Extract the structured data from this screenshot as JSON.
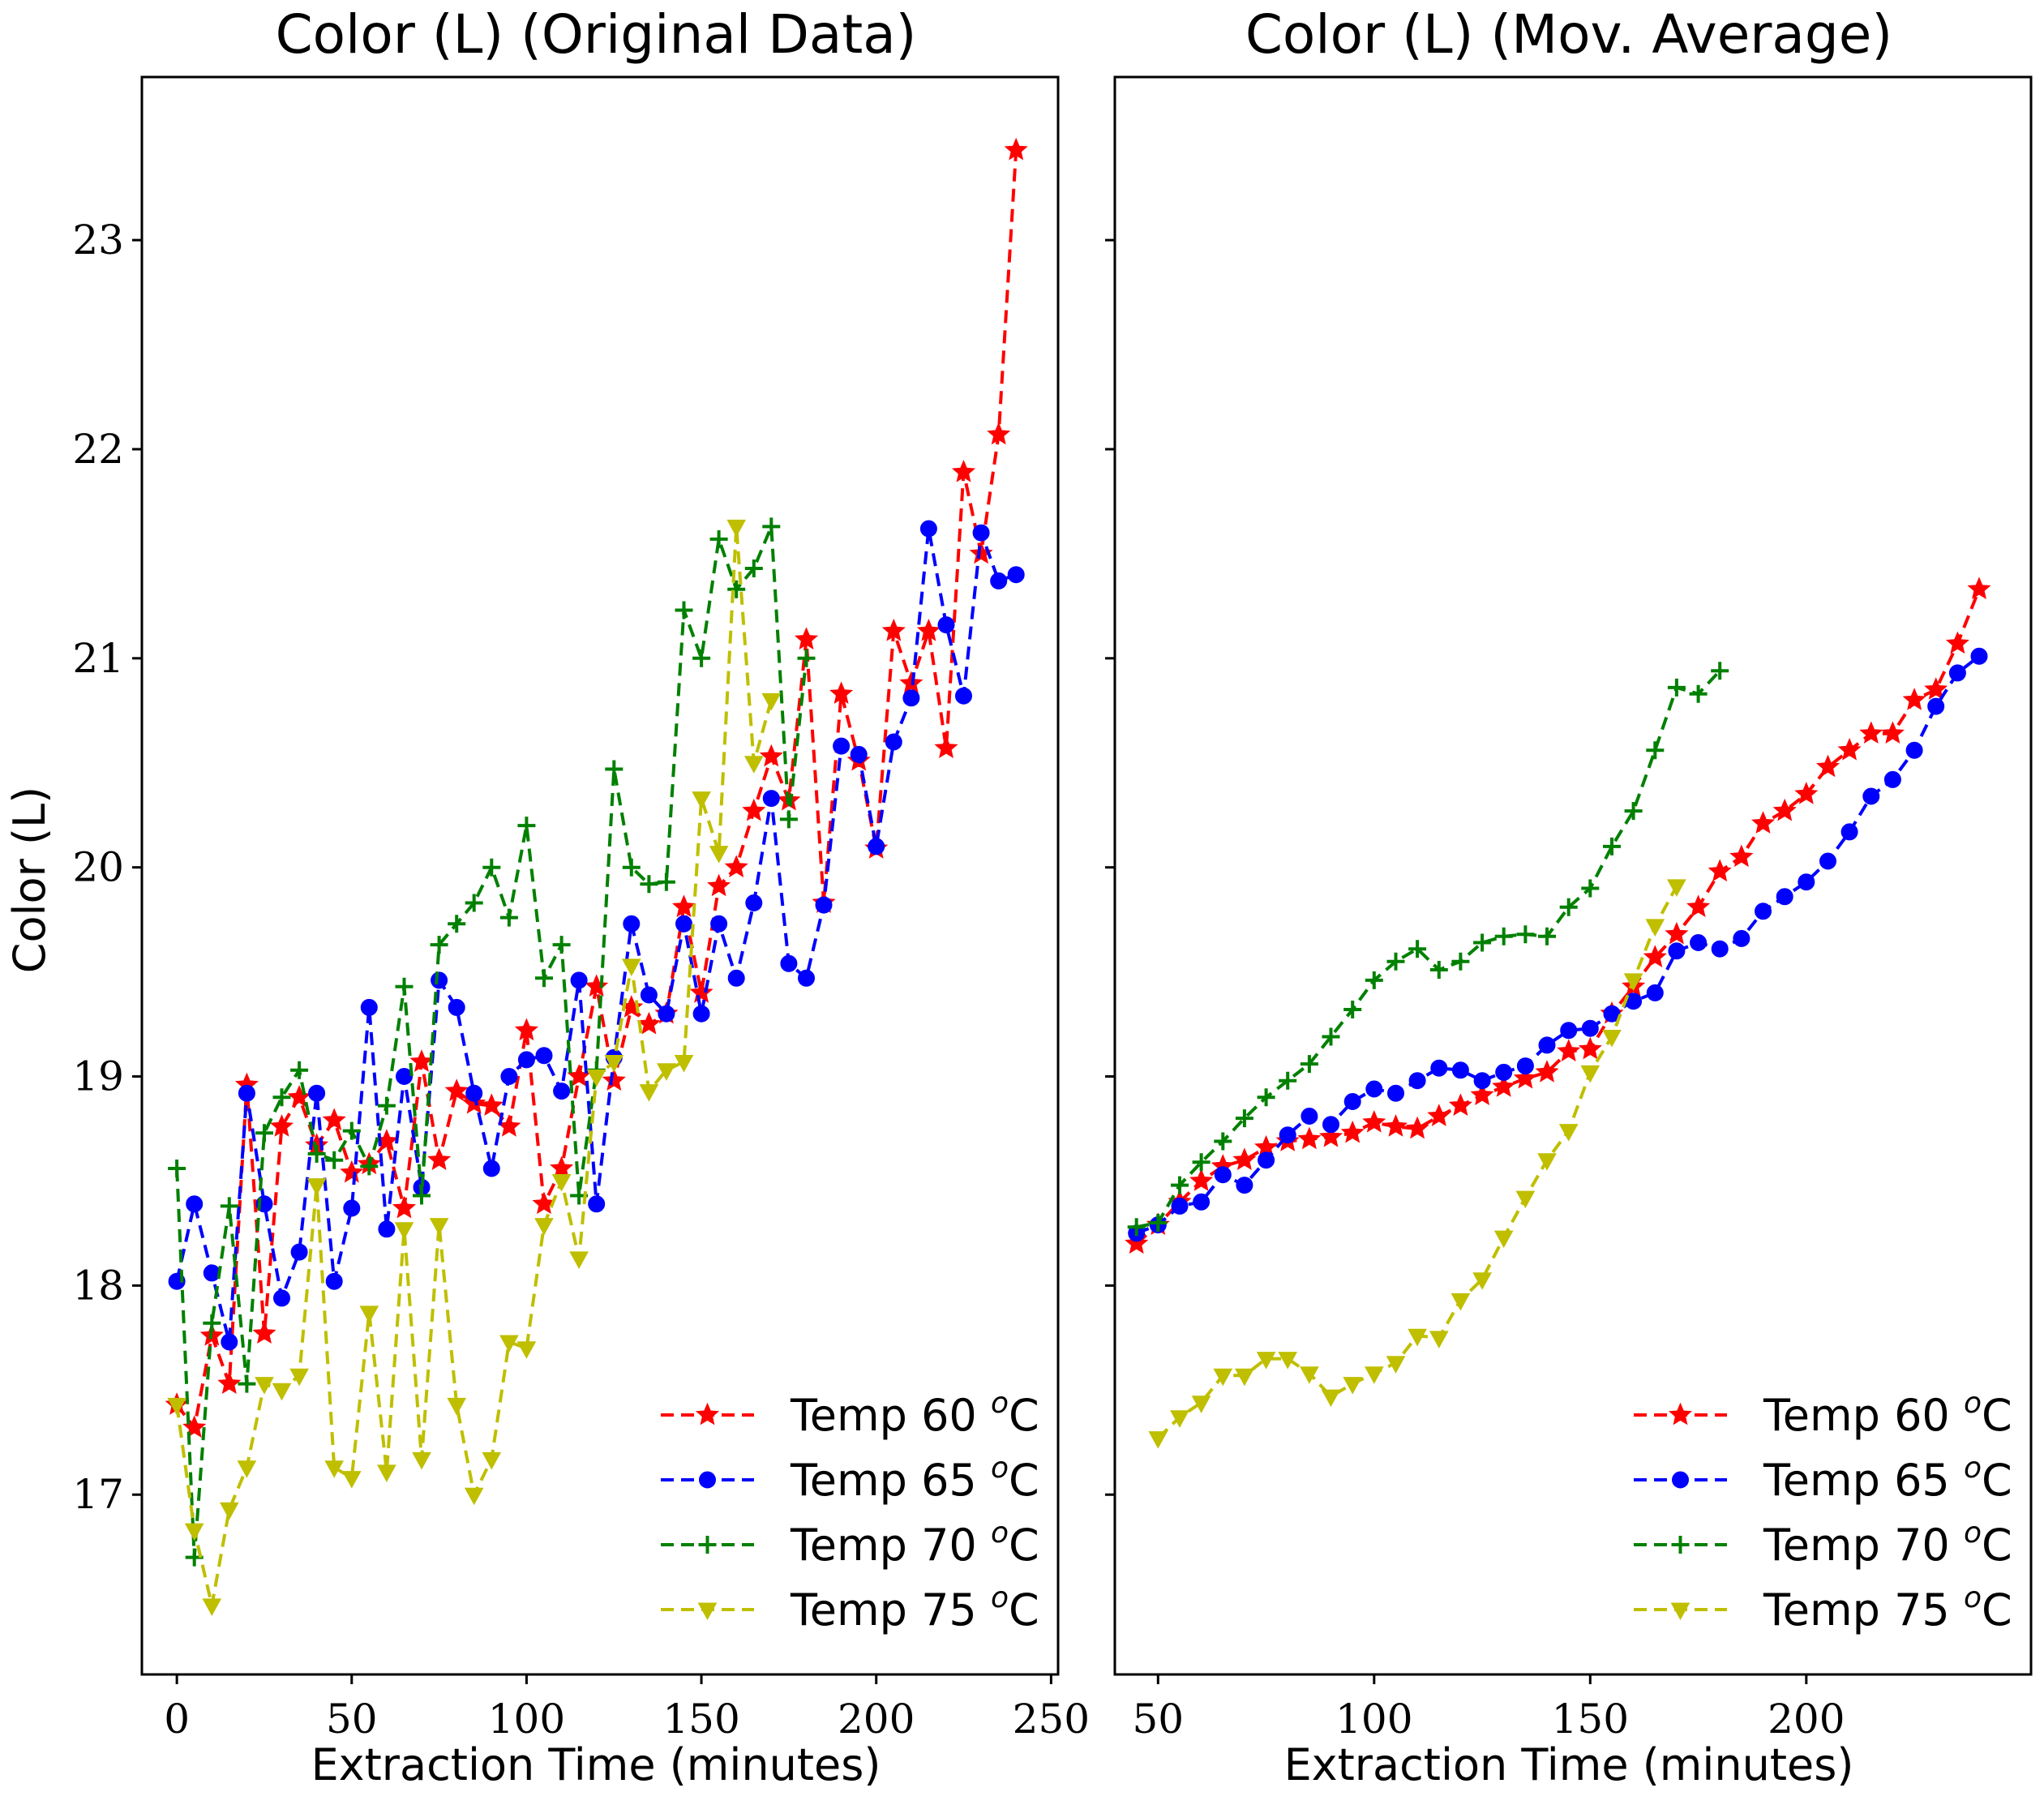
{
  "chart_data": [
    {
      "type": "line",
      "title": "Color (L) (Original Data)",
      "xlabel": "Extraction Time (minutes)",
      "ylabel": "Color (L)",
      "xlim": [
        -10,
        252
      ],
      "ylim": [
        16.14,
        23.78
      ],
      "xticks": [
        0,
        50,
        100,
        150,
        200,
        250
      ],
      "yticks": [
        17,
        18,
        19,
        20,
        21,
        22,
        23
      ],
      "grid": false,
      "legend_position": "lower-right",
      "series": [
        {
          "name": "Temp 60 ",
          "unit": "oC",
          "color": "#ff0000",
          "marker": "star",
          "x": [
            0,
            5,
            10,
            15,
            20,
            25,
            30,
            35,
            40,
            45,
            50,
            55,
            60,
            65,
            70,
            75,
            80,
            85,
            90,
            95,
            100,
            105,
            110,
            115,
            120,
            125,
            130,
            135,
            140,
            145,
            150,
            155,
            160,
            165,
            170,
            175,
            180,
            185,
            190,
            195,
            200,
            205,
            210,
            215,
            220,
            225,
            230,
            235,
            240
          ],
          "y": [
            17.43,
            17.32,
            17.76,
            17.53,
            18.96,
            17.77,
            18.76,
            18.9,
            18.67,
            18.79,
            18.54,
            18.58,
            18.69,
            18.37,
            19.07,
            18.6,
            18.93,
            18.87,
            18.86,
            18.76,
            19.22,
            18.39,
            18.56,
            19.0,
            19.43,
            18.98,
            19.33,
            19.25,
            19.3,
            19.81,
            19.4,
            19.91,
            20.0,
            20.27,
            20.53,
            20.32,
            21.09,
            19.83,
            20.83,
            20.51,
            20.09,
            21.13,
            20.88,
            21.13,
            20.57,
            21.89,
            21.5,
            22.07,
            23.43
          ]
        },
        {
          "name": "Temp 65 ",
          "unit": "oC",
          "color": "#0000ff",
          "marker": "circle",
          "x": [
            0,
            5,
            10,
            15,
            20,
            25,
            30,
            35,
            40,
            45,
            50,
            55,
            60,
            65,
            70,
            75,
            80,
            85,
            90,
            95,
            100,
            105,
            110,
            115,
            120,
            125,
            130,
            135,
            140,
            145,
            150,
            155,
            160,
            165,
            170,
            175,
            180,
            185,
            190,
            195,
            200,
            205,
            210,
            215,
            220,
            225,
            230,
            235,
            240
          ],
          "y": [
            18.02,
            18.39,
            18.06,
            17.73,
            18.92,
            18.39,
            17.94,
            18.16,
            18.92,
            18.02,
            18.37,
            19.33,
            18.27,
            19.0,
            18.47,
            19.46,
            19.33,
            18.92,
            18.56,
            19.0,
            19.08,
            19.1,
            18.93,
            19.46,
            18.39,
            19.09,
            19.73,
            19.39,
            19.3,
            19.73,
            19.3,
            19.73,
            19.47,
            19.83,
            20.33,
            19.54,
            19.47,
            19.82,
            20.58,
            20.54,
            20.1,
            20.6,
            20.81,
            21.62,
            21.16,
            20.82,
            21.6,
            21.37,
            21.4
          ]
        },
        {
          "name": "Temp 70 ",
          "unit": "oC",
          "color": "#008000",
          "marker": "plus",
          "x": [
            0,
            5,
            10,
            15,
            20,
            25,
            30,
            35,
            40,
            45,
            50,
            55,
            60,
            65,
            70,
            75,
            80,
            85,
            90,
            95,
            100,
            105,
            110,
            115,
            120,
            125,
            130,
            135,
            140,
            145,
            150,
            155,
            160,
            165,
            170,
            175,
            180
          ],
          "y": [
            18.56,
            16.7,
            17.82,
            18.38,
            17.53,
            18.73,
            18.9,
            19.03,
            18.63,
            18.6,
            18.74,
            18.57,
            18.86,
            19.43,
            18.43,
            19.63,
            19.73,
            19.83,
            20.0,
            19.76,
            20.2,
            19.47,
            19.63,
            18.43,
            19.03,
            20.47,
            20.0,
            19.92,
            19.93,
            21.23,
            21.0,
            21.57,
            21.33,
            21.43,
            21.63,
            20.23,
            21.0
          ]
        },
        {
          "name": "Temp 75 ",
          "unit": "oC",
          "color": "#bfbf00",
          "marker": "triangle-down",
          "x": [
            0,
            5,
            10,
            15,
            20,
            25,
            30,
            35,
            40,
            45,
            50,
            55,
            60,
            65,
            70,
            75,
            80,
            85,
            90,
            95,
            100,
            105,
            110,
            115,
            120,
            125,
            130,
            135,
            140,
            145,
            150,
            155,
            160,
            165,
            170
          ],
          "y": [
            17.43,
            16.83,
            16.47,
            16.93,
            17.13,
            17.53,
            17.5,
            17.57,
            18.48,
            17.13,
            17.08,
            17.87,
            17.11,
            18.27,
            17.17,
            18.29,
            17.43,
            17.0,
            17.17,
            17.73,
            17.7,
            18.29,
            18.5,
            18.13,
            19.0,
            19.07,
            19.53,
            18.93,
            19.03,
            19.07,
            20.33,
            20.07,
            21.63,
            20.5,
            20.8
          ]
        }
      ]
    },
    {
      "type": "line",
      "title": "Color (L) (Mov. Average)",
      "xlabel": "Extraction Time (minutes)",
      "ylabel": "",
      "xlim": [
        40,
        252
      ],
      "ylim": [
        16.14,
        23.78
      ],
      "xticks": [
        50,
        100,
        150,
        200
      ],
      "yticks": [
        17,
        18,
        19,
        20,
        21,
        22,
        23
      ],
      "grid": false,
      "legend_position": "lower-right",
      "series": [
        {
          "name": "Temp 60 ",
          "unit": "oC",
          "color": "#ff0000",
          "marker": "star",
          "x": [
            45,
            50,
            55,
            60,
            65,
            70,
            75,
            80,
            85,
            90,
            95,
            100,
            105,
            110,
            115,
            120,
            125,
            130,
            135,
            140,
            145,
            150,
            155,
            160,
            165,
            170,
            175,
            180,
            185,
            190,
            195,
            200,
            205,
            210,
            215,
            220,
            225,
            230,
            235,
            240
          ],
          "y": [
            18.2,
            18.29,
            18.4,
            18.5,
            18.57,
            18.6,
            18.66,
            18.69,
            18.7,
            18.71,
            18.73,
            18.78,
            18.76,
            18.75,
            18.81,
            18.86,
            18.91,
            18.95,
            18.99,
            19.02,
            19.12,
            19.13,
            19.3,
            19.43,
            19.57,
            19.68,
            19.81,
            19.98,
            20.05,
            20.21,
            20.27,
            20.35,
            20.48,
            20.56,
            20.64,
            20.64,
            20.8,
            20.85,
            21.07,
            21.33
          ]
        },
        {
          "name": "Temp 65 ",
          "unit": "oC",
          "color": "#0000ff",
          "marker": "circle",
          "x": [
            45,
            50,
            55,
            60,
            65,
            70,
            75,
            80,
            85,
            90,
            95,
            100,
            105,
            110,
            115,
            120,
            125,
            130,
            135,
            140,
            145,
            150,
            155,
            160,
            165,
            170,
            175,
            180,
            185,
            190,
            195,
            200,
            205,
            210,
            215,
            220,
            225,
            230,
            235,
            240
          ],
          "y": [
            18.25,
            18.29,
            18.38,
            18.4,
            18.53,
            18.48,
            18.6,
            18.72,
            18.81,
            18.77,
            18.88,
            18.94,
            18.92,
            18.98,
            19.04,
            19.03,
            18.98,
            19.02,
            19.05,
            19.15,
            19.22,
            19.23,
            19.3,
            19.36,
            19.4,
            19.6,
            19.64,
            19.61,
            19.66,
            19.79,
            19.86,
            19.93,
            20.03,
            20.17,
            20.34,
            20.42,
            20.56,
            20.77,
            20.93,
            21.01
          ]
        },
        {
          "name": "Temp 70 ",
          "unit": "oC",
          "color": "#008000",
          "marker": "plus",
          "x": [
            45,
            50,
            55,
            60,
            65,
            70,
            75,
            80,
            85,
            90,
            95,
            100,
            105,
            110,
            115,
            120,
            125,
            130,
            135,
            140,
            145,
            150,
            155,
            160,
            165,
            170,
            175,
            180
          ],
          "y": [
            18.28,
            18.3,
            18.48,
            18.59,
            18.69,
            18.8,
            18.9,
            18.98,
            19.06,
            19.19,
            19.32,
            19.46,
            19.55,
            19.61,
            19.51,
            19.55,
            19.64,
            19.67,
            19.68,
            19.67,
            19.81,
            19.9,
            20.1,
            20.27,
            20.56,
            20.86,
            20.83,
            20.94
          ]
        },
        {
          "name": "Temp 75 ",
          "unit": "oC",
          "color": "#bfbf00",
          "marker": "triangle-down",
          "x": [
            50,
            55,
            60,
            65,
            70,
            75,
            80,
            85,
            90,
            95,
            100,
            105,
            110,
            115,
            120,
            125,
            130,
            135,
            140,
            145,
            150,
            155,
            160,
            165,
            170
          ],
          "y": [
            17.27,
            17.37,
            17.44,
            17.57,
            17.57,
            17.65,
            17.65,
            17.58,
            17.47,
            17.53,
            17.58,
            17.63,
            17.76,
            17.75,
            17.93,
            18.03,
            18.23,
            18.42,
            18.6,
            18.74,
            19.02,
            19.19,
            19.46,
            19.72,
            19.91
          ]
        }
      ]
    }
  ]
}
